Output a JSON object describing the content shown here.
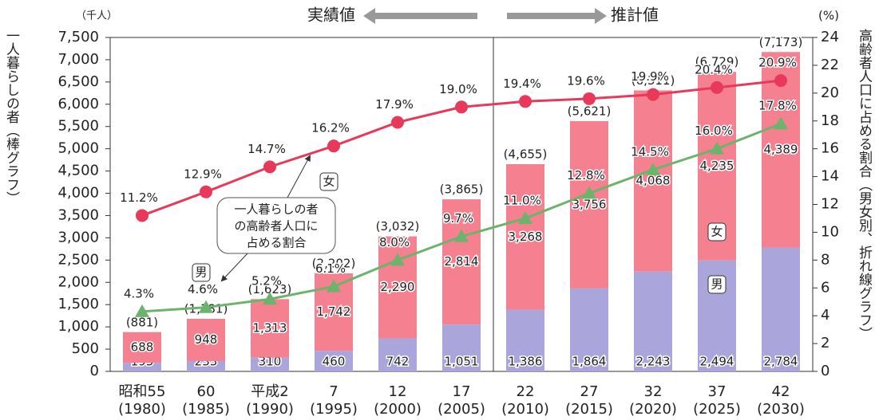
{
  "chart_data": {
    "type": "bar",
    "stacked": true,
    "header_left": "実績値",
    "header_right": "推計値",
    "y_unit": "（千人）",
    "y2_unit": "(%)",
    "ylabel": "一人暮らしの者（棒グラフ）",
    "y2label": "高齢者人口に占める割合（男女別、折れ線グラフ）",
    "annotation": [
      "一人暮らしの者",
      "の高齢者人口に",
      "占める割合"
    ],
    "categories": [
      "昭和55",
      "60",
      "平成2",
      "7",
      "12",
      "17",
      "22",
      "27",
      "32",
      "37",
      "42"
    ],
    "category_sublabels": [
      "(1980)",
      "(1985)",
      "(1990)",
      "(1995)",
      "(2000)",
      "(2005)",
      "(2010)",
      "(2015)",
      "(2020)",
      "(2025)",
      "(2030)"
    ],
    "series": [
      {
        "name": "男",
        "color": "#aaa6dc",
        "values": [
          193,
          233,
          310,
          460,
          742,
          1051,
          1386,
          1864,
          2243,
          2494,
          2784
        ],
        "value_labels": [
          "193",
          "233",
          "310",
          "460",
          "742",
          "1,051",
          "1,386",
          "1,864",
          "2,243",
          "2,494",
          "2,784"
        ]
      },
      {
        "name": "女",
        "color": "#f5808f",
        "values": [
          688,
          948,
          1313,
          1742,
          2290,
          2814,
          3268,
          3756,
          4068,
          4235,
          4389
        ],
        "value_labels": [
          "688",
          "948",
          "1,313",
          "1,742",
          "2,290",
          "2,814",
          "3,268",
          "3,756",
          "4,068",
          "4,235",
          "4,389"
        ]
      },
      {
        "type": "line",
        "axis": "y2",
        "color": "#e8395a",
        "marker": "circle",
        "values": [
          11.2,
          12.9,
          14.7,
          16.2,
          17.9,
          19.0,
          19.4,
          19.6,
          19.9,
          20.4,
          20.9
        ],
        "value_labels": [
          "11.2%",
          "12.9%",
          "14.7%",
          "16.2%",
          "17.9%",
          "19.0%",
          "19.4%",
          "19.6%",
          "19.9%",
          "20.4%",
          "20.9%"
        ]
      },
      {
        "type": "line",
        "axis": "y2",
        "color": "#6cb46c",
        "marker": "triangle",
        "values": [
          4.3,
          4.6,
          5.2,
          6.1,
          8.0,
          9.7,
          11.0,
          12.8,
          14.5,
          16.0,
          17.8
        ],
        "value_labels": [
          "4.3%",
          "4.6%",
          "5.2%",
          "6.1%",
          "8.0%",
          "9.7%",
          "11.0%",
          "12.8%",
          "14.5%",
          "16.0%",
          "17.8%"
        ]
      }
    ],
    "totals": {
      "values": [
        881,
        1181,
        1623,
        2202,
        3032,
        3865,
        4655,
        5621,
        6311,
        6729,
        7173
      ],
      "value_labels": [
        "(881)",
        "(1,181)",
        "(1,623)",
        "(2,202)",
        "(3,032)",
        "(3,865)",
        "(4,655)",
        "(5,621)",
        "(6,311)",
        "(6,729)",
        "(7,173)"
      ]
    },
    "ylim": [
      0,
      7500
    ],
    "yticks": [
      0,
      500,
      {
        "value": 1000,
        "label": "1,000"
      },
      {
        "value": 1500,
        "label": "1,500"
      },
      {
        "value": 2000,
        "label": "2,000"
      },
      {
        "value": 2500,
        "label": "2,500"
      },
      {
        "value": 3000,
        "label": "3,000"
      },
      {
        "value": 3500,
        "label": "3,500"
      },
      {
        "value": 4000,
        "label": "4,000"
      },
      {
        "value": 4500,
        "label": "4,500"
      },
      {
        "value": 5000,
        "label": "5,000"
      },
      {
        "value": 5500,
        "label": "5,500"
      },
      {
        "value": 6000,
        "label": "6,000"
      },
      {
        "value": 6500,
        "label": "6,500"
      },
      {
        "value": 7000,
        "label": "7,000"
      },
      {
        "value": 7500,
        "label": "7,500"
      }
    ],
    "y2lim": [
      0,
      24
    ],
    "y2ticks": [
      0,
      2,
      4,
      6,
      8,
      10,
      12,
      14,
      16,
      18,
      20,
      22,
      24
    ],
    "divider_after": 5
  }
}
